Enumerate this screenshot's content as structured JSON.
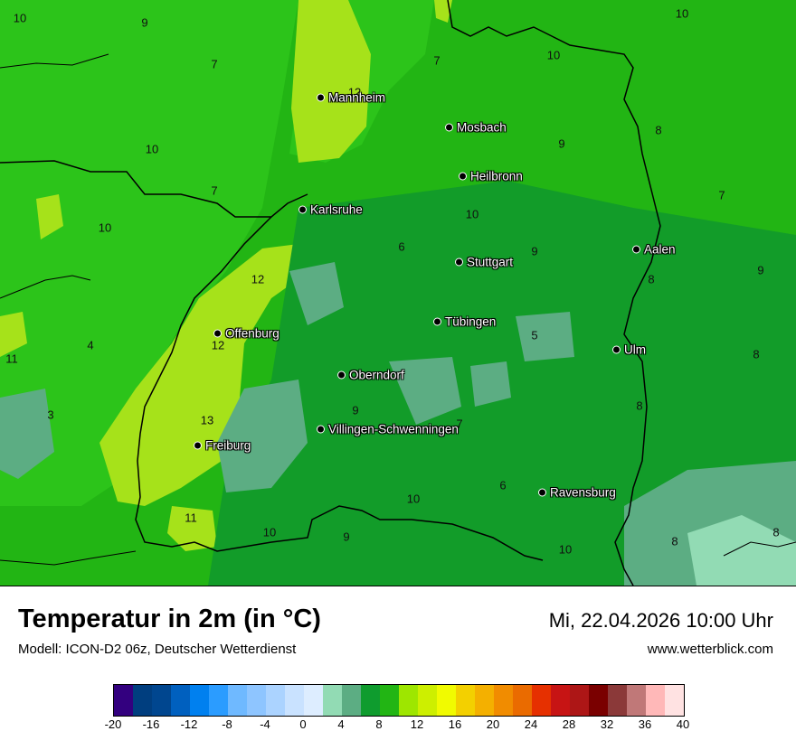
{
  "map": {
    "temperature_labels": [
      "10",
      "9",
      "7",
      "7",
      "10",
      "10",
      "7",
      "10",
      "10",
      "12",
      "6",
      "9",
      "9",
      "10",
      "8",
      "7",
      "9",
      "8",
      "8",
      "4",
      "11",
      "3",
      "12",
      "12",
      "13",
      "9",
      "5",
      "8",
      "7",
      "6",
      "10",
      "10",
      "11",
      "9",
      "10",
      "8",
      "8"
    ],
    "cities": [
      "Mannheim",
      "Mosbach",
      "Heilbronn",
      "Karlsruhe",
      "Stuttgart",
      "Aalen",
      "Tübingen",
      "Offenburg",
      "Ulm",
      "Oberndorf",
      "Villingen-Schwenningen",
      "Freiburg",
      "Ravensburg"
    ]
  },
  "header": {
    "title": "Temperatur in 2m (in °C)",
    "model": "Modell: ICON-D2 06z, Deutscher Wetterdienst",
    "datetime": "Mi, 22.04.2026 10:00 Uhr",
    "website": "www.wetterblick.com"
  },
  "legend": {
    "colors": [
      "#33007f",
      "#003e7f",
      "#00468f",
      "#0060bf",
      "#0080ef",
      "#2b9cff",
      "#6fb9ff",
      "#8ec5ff",
      "#abd3ff",
      "#c9e2ff",
      "#ddedff",
      "#92dbb4",
      "#5cad83",
      "#0f9c2e",
      "#22b514",
      "#9ee600",
      "#cdef00",
      "#f1fb00",
      "#f3d000",
      "#f4b000",
      "#f18c00",
      "#ea6b00",
      "#e63000",
      "#c71414",
      "#ad1616",
      "#7a0000",
      "#8b3939",
      "#c07878",
      "#ffb8b8",
      "#ffe2e2"
    ],
    "ticks": [
      "-20",
      "-16",
      "-12",
      "-8",
      "-4",
      "0",
      "4",
      "8",
      "12",
      "16",
      "20",
      "24",
      "28",
      "32",
      "36",
      "40"
    ]
  }
}
